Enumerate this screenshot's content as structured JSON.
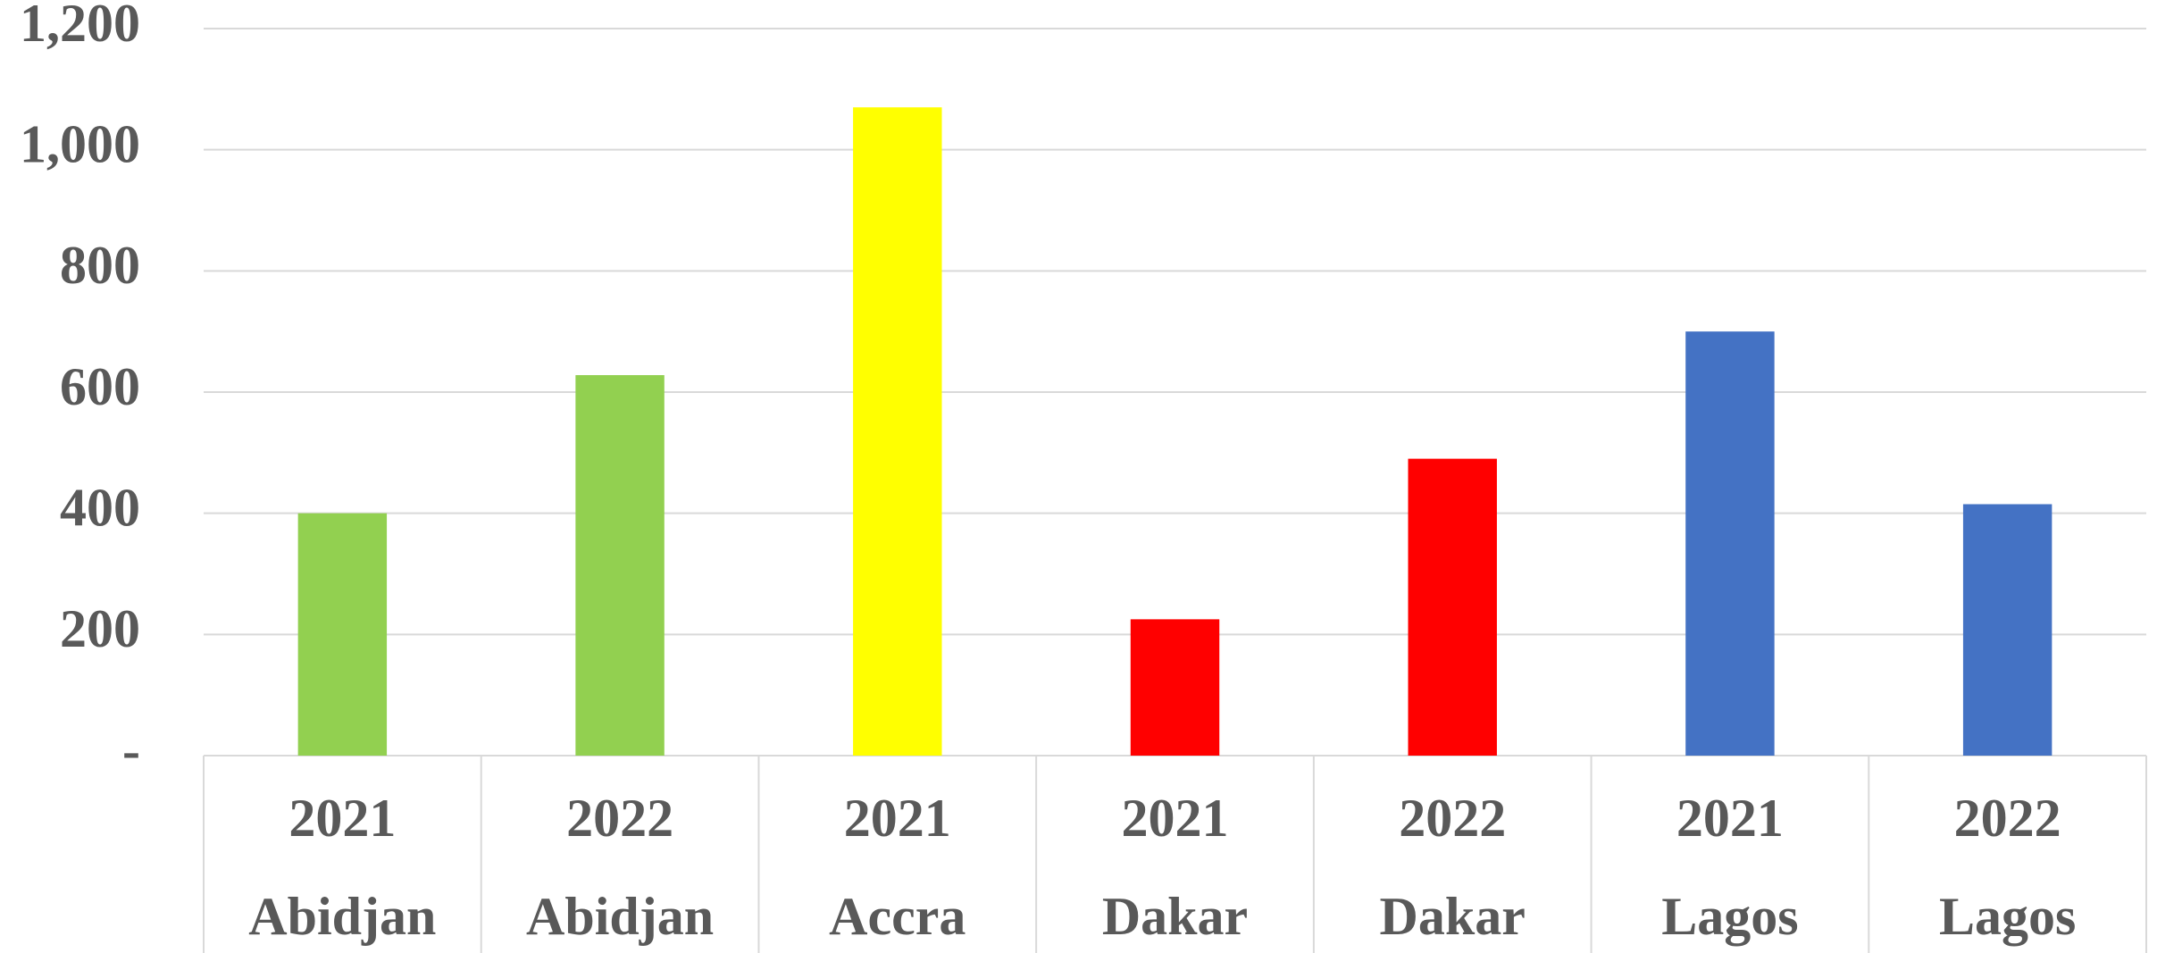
{
  "chart_data": {
    "type": "bar",
    "categories": [
      [
        "2021",
        "Abidjan"
      ],
      [
        "2022",
        "Abidjan"
      ],
      [
        "2021",
        "Accra"
      ],
      [
        "2021",
        "Dakar"
      ],
      [
        "2022",
        "Dakar"
      ],
      [
        "2021",
        "Lagos"
      ],
      [
        "2022",
        "Lagos"
      ]
    ],
    "values": [
      400,
      628,
      1070,
      225,
      490,
      700,
      415
    ],
    "colors": [
      "#92d050",
      "#92d050",
      "#ffff00",
      "#ff0000",
      "#ff0000",
      "#4472c4",
      "#4472c4"
    ],
    "ylim": [
      0,
      1200
    ],
    "yticks": [
      {
        "value": 0,
        "label": "-"
      },
      200,
      400,
      600,
      800,
      {
        "value": 1000,
        "label": "1,000"
      },
      {
        "value": 1200,
        "label": "1,200"
      }
    ],
    "grid": true
  }
}
